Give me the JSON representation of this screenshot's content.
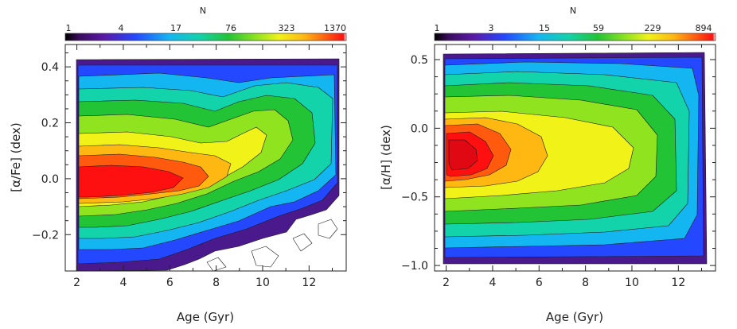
{
  "chart_data": [
    {
      "type": "heatmap",
      "title": "",
      "xlabel": "Age (Gyr)",
      "ylabel": "[α/Fe] (dex)",
      "xlim": [
        1.5,
        13.6
      ],
      "ylim": [
        -0.33,
        0.48
      ],
      "xticks": [
        2,
        4,
        6,
        8,
        10,
        12
      ],
      "yticks": [
        -0.2,
        0.0,
        0.2,
        0.4
      ],
      "ytick_labels": [
        "−0.2",
        "0.0",
        "0.2",
        "0.4"
      ],
      "colorbar": {
        "label": "N",
        "ticks": [
          "1",
          "4",
          "17",
          "76",
          "323",
          "1370"
        ]
      },
      "data_extent": {
        "x": [
          1.95,
          13.1
        ],
        "y": [
          -0.31,
          0.45
        ]
      },
      "density_ridge": [
        {
          "age": 2.0,
          "value": -0.04
        },
        {
          "age": 4.0,
          "value": -0.03
        },
        {
          "age": 6.0,
          "value": 0.0
        },
        {
          "age": 8.0,
          "value": 0.07
        },
        {
          "age": 9.5,
          "value": 0.15
        },
        {
          "age": 11.5,
          "value": 0.24
        },
        {
          "age": 13.0,
          "value": 0.28
        }
      ]
    },
    {
      "type": "heatmap",
      "title": "",
      "xlabel": "Age (Gyr)",
      "ylabel": "[α/H] (dex)",
      "xlim": [
        1.5,
        13.6
      ],
      "ylim": [
        -1.04,
        0.61
      ],
      "xticks": [
        2,
        4,
        6,
        8,
        10,
        12
      ],
      "yticks": [
        -1.0,
        -0.5,
        0.0,
        0.5
      ],
      "ytick_labels": [
        "−1.0",
        "−0.5",
        "0.0",
        "0.5"
      ],
      "colorbar": {
        "label": "N",
        "ticks": [
          "1",
          "3",
          "15",
          "59",
          "229",
          "894"
        ]
      },
      "data_extent": {
        "x": [
          2.0,
          13.2
        ],
        "y": [
          -0.9,
          0.53
        ]
      },
      "density_ridge": [
        {
          "age": 2.0,
          "value": -0.2
        },
        {
          "age": 4.0,
          "value": -0.2
        },
        {
          "age": 6.0,
          "value": -0.17
        },
        {
          "age": 8.0,
          "value": -0.12
        },
        {
          "age": 10.0,
          "value": -0.1
        },
        {
          "age": 13.0,
          "value": -0.08
        }
      ]
    }
  ]
}
